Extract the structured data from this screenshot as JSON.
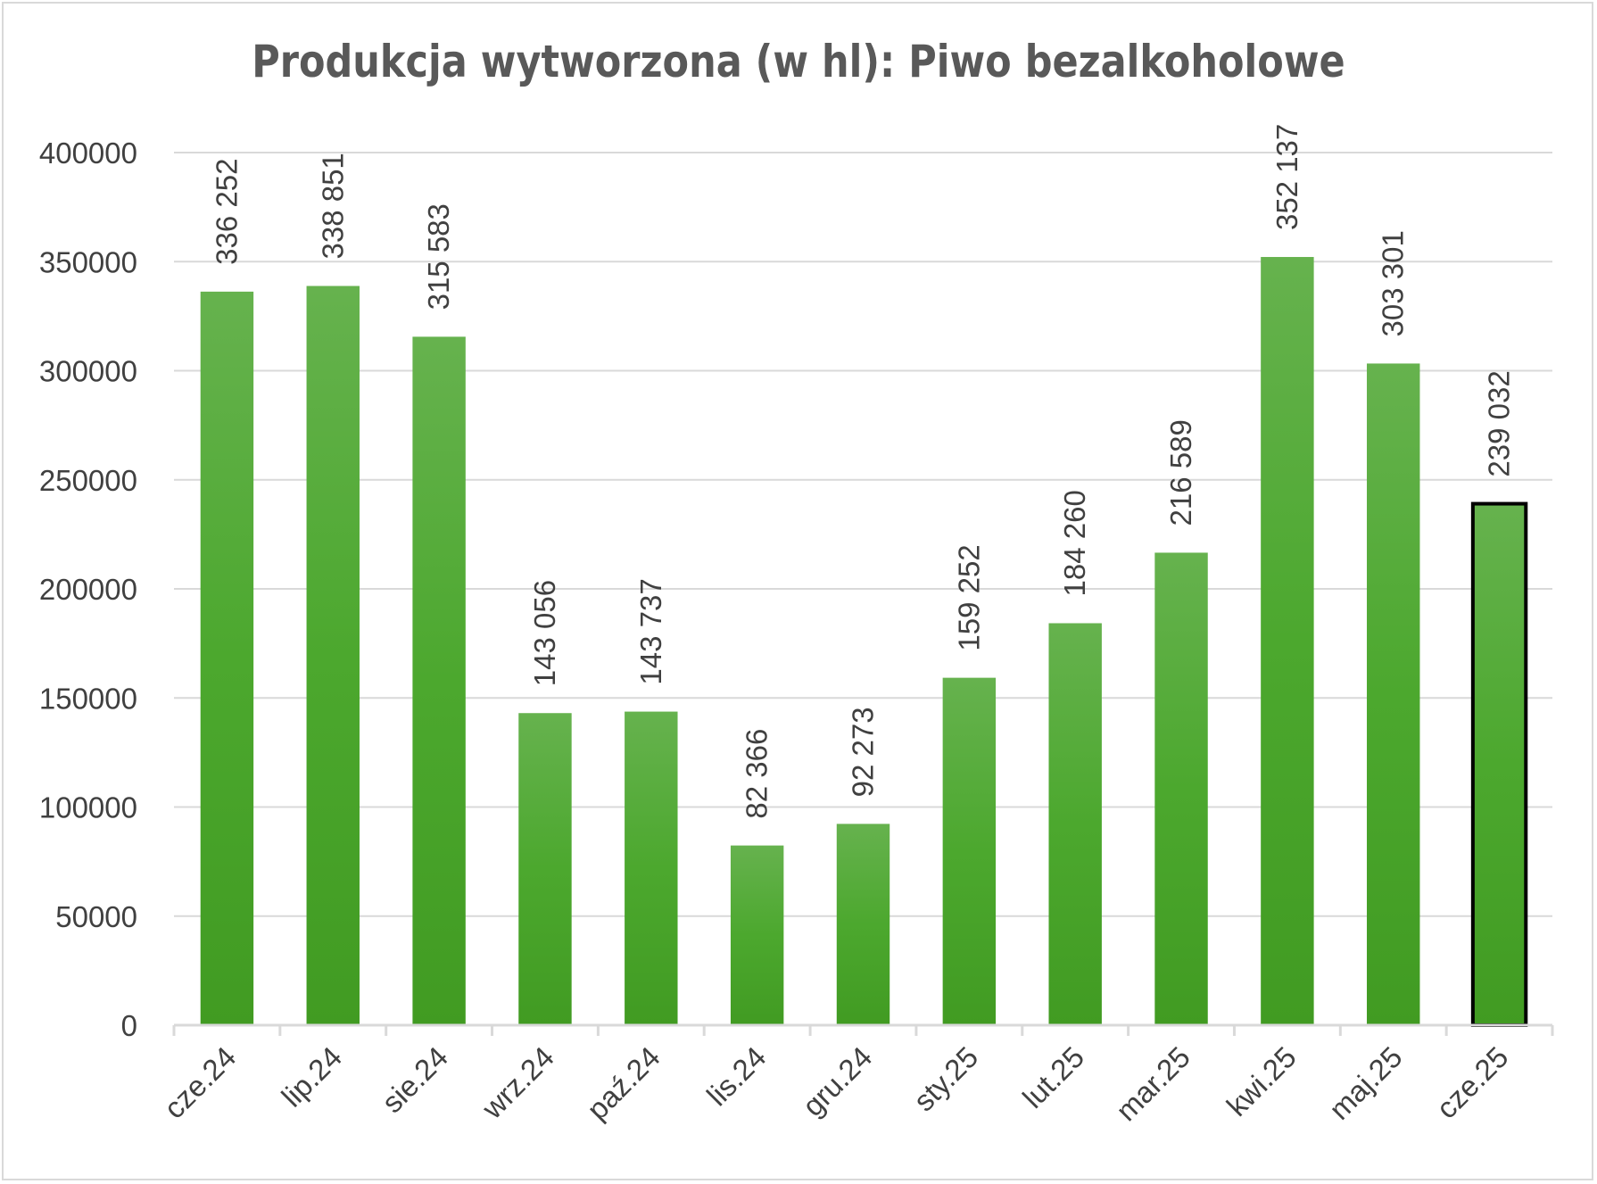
{
  "chart_data": {
    "type": "bar",
    "title": "Produkcja wytworzona (w hl): Piwo bezalkoholowe",
    "xlabel": "",
    "ylabel": "",
    "ylim": [
      0,
      400000
    ],
    "yticks": [
      "0",
      "50000",
      "100000",
      "150000",
      "200000",
      "250000",
      "300000",
      "350000",
      "400000"
    ],
    "grid": true,
    "legend": "none",
    "bar_color": "#4ca82e",
    "highlight_outline_color": "#000000",
    "highlighted_category": "cze.25",
    "categories": [
      "cze.24",
      "lip.24",
      "sie.24",
      "wrz.24",
      "paź.24",
      "lis.24",
      "gru.24",
      "sty.25",
      "lut.25",
      "mar.25",
      "kwi.25",
      "maj.25",
      "cze.25"
    ],
    "values": [
      336252,
      338851,
      315583,
      143056,
      143737,
      82366,
      92273,
      159252,
      184260,
      216589,
      352137,
      303301,
      239032
    ],
    "data_labels": [
      "336 252",
      "338 851",
      "315 583",
      "143 056",
      "143 737",
      "82 366",
      "92 273",
      "159 252",
      "184 260",
      "216 589",
      "352 137",
      "303 301",
      "239 032"
    ]
  }
}
